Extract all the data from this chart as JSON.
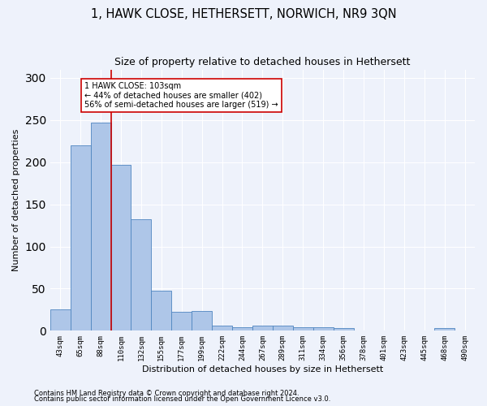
{
  "title": "1, HAWK CLOSE, HETHERSETT, NORWICH, NR9 3QN",
  "subtitle": "Size of property relative to detached houses in Hethersett",
  "xlabel": "Distribution of detached houses by size in Hethersett",
  "ylabel": "Number of detached properties",
  "footnote1": "Contains HM Land Registry data © Crown copyright and database right 2024.",
  "footnote2": "Contains public sector information licensed under the Open Government Licence v3.0.",
  "categories": [
    "43sqm",
    "65sqm",
    "88sqm",
    "110sqm",
    "132sqm",
    "155sqm",
    "177sqm",
    "199sqm",
    "222sqm",
    "244sqm",
    "267sqm",
    "289sqm",
    "311sqm",
    "334sqm",
    "356sqm",
    "378sqm",
    "401sqm",
    "423sqm",
    "445sqm",
    "468sqm",
    "490sqm"
  ],
  "values": [
    25,
    220,
    247,
    197,
    132,
    48,
    22,
    23,
    6,
    4,
    6,
    6,
    4,
    4,
    3,
    0,
    0,
    0,
    0,
    3,
    0
  ],
  "bar_color": "#aec6e8",
  "bar_edge_color": "#4f86c0",
  "vline_x": 2.5,
  "vline_color": "#cc0000",
  "annotation_text": "1 HAWK CLOSE: 103sqm\n← 44% of detached houses are smaller (402)\n56% of semi-detached houses are larger (519) →",
  "annotation_box_color": "#cc0000",
  "annotation_text_color": "#000000",
  "ylim": [
    0,
    310
  ],
  "yticks": [
    0,
    50,
    100,
    150,
    200,
    250,
    300
  ],
  "background_color": "#eef2fb",
  "grid_color": "#ffffff",
  "title_fontsize": 10.5,
  "subtitle_fontsize": 9,
  "axis_label_fontsize": 8,
  "tick_fontsize": 6.5,
  "annotation_fontsize": 7,
  "footnote_fontsize": 6
}
